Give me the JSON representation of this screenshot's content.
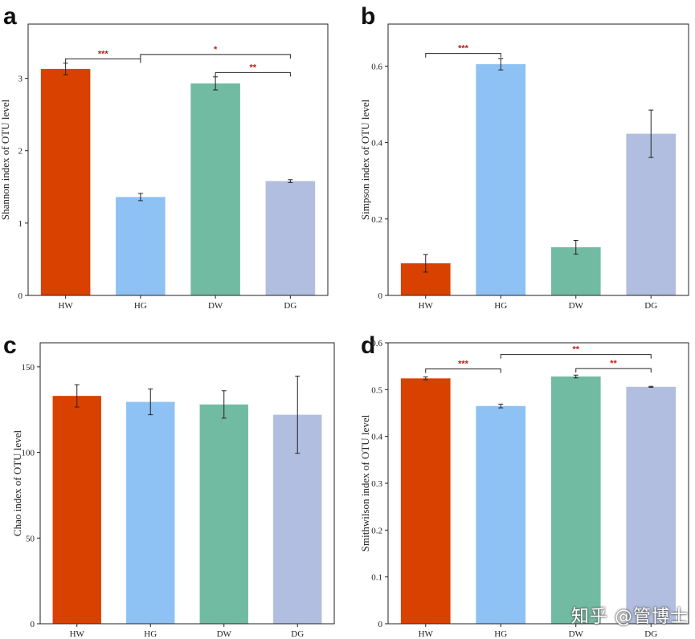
{
  "colors": {
    "HW": "#d94100",
    "HG": "#8ec1f4",
    "DW": "#72bba3",
    "DG": "#b2bedf",
    "significance": "#c0201b",
    "axis": "#222222"
  },
  "chart_data": [
    {
      "panel": "a",
      "type": "bar",
      "ylabel": "Shannon index of OTU level",
      "categories": [
        "HW",
        "HG",
        "DW",
        "DG"
      ],
      "values": [
        3.13,
        1.36,
        2.93,
        1.58
      ],
      "errors": [
        0.08,
        0.05,
        0.09,
        0.02
      ],
      "ylim": [
        0,
        3.75
      ],
      "yticks": [
        "0",
        "1",
        "2",
        "3"
      ],
      "significance": [
        {
          "from": 0,
          "to": 1,
          "label": "***",
          "y": 3.27
        },
        {
          "from": 1,
          "to": 3,
          "label": "*",
          "y": 3.33
        },
        {
          "from": 2,
          "to": 3,
          "label": "**",
          "y": 3.08
        }
      ]
    },
    {
      "panel": "b",
      "type": "bar",
      "ylabel": "Simpson index of OTU level",
      "categories": [
        "HW",
        "HG",
        "DW",
        "DG"
      ],
      "values": [
        0.084,
        0.605,
        0.126,
        0.423
      ],
      "errors": [
        0.023,
        0.015,
        0.018,
        0.062
      ],
      "ylim": [
        0,
        0.71
      ],
      "yticks": [
        "0",
        "0.2",
        "0.4",
        "0.6"
      ],
      "significance": [
        {
          "from": 0,
          "to": 1,
          "label": "***",
          "y": 0.633
        }
      ]
    },
    {
      "panel": "c",
      "type": "bar",
      "ylabel": "Chao index of OTU level",
      "categories": [
        "HW",
        "HG",
        "DW",
        "DG"
      ],
      "values": [
        133,
        129.5,
        128,
        122
      ],
      "errors": [
        6.5,
        7.5,
        8,
        22.5
      ],
      "ylim": [
        0,
        164
      ],
      "yticks": [
        "0",
        "50",
        "100",
        "150"
      ],
      "significance": []
    },
    {
      "panel": "d",
      "type": "bar",
      "ylabel": "Smithwilson index of OTU level",
      "categories": [
        "HW",
        "HG",
        "DW",
        "DG"
      ],
      "values": [
        0.524,
        0.465,
        0.528,
        0.506
      ],
      "errors": [
        0.003,
        0.004,
        0.003,
        0.001
      ],
      "ylim": [
        0,
        0.6
      ],
      "yticks": [
        "0",
        "0.1",
        "0.2",
        "0.3",
        "0.4",
        "0.5",
        "0.6"
      ],
      "significance": [
        {
          "from": 0,
          "to": 1,
          "label": "***",
          "y": 0.544
        },
        {
          "from": 1,
          "to": 3,
          "label": "**",
          "y": 0.575
        },
        {
          "from": 2,
          "to": 3,
          "label": "**",
          "y": 0.545
        }
      ]
    }
  ],
  "watermark": "知乎 @管博士"
}
